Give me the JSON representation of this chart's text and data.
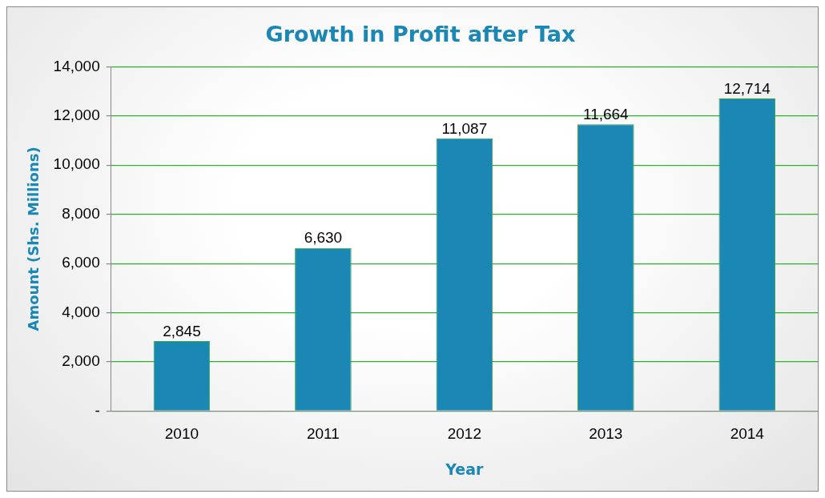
{
  "chart_data": {
    "type": "bar",
    "title": "Growth in Profit after Tax",
    "xlabel": "Year",
    "ylabel": "Amount (Shs. Millions)",
    "categories": [
      "2010",
      "2011",
      "2012",
      "2013",
      "2014"
    ],
    "values": [
      2845,
      6630,
      11087,
      11664,
      12714
    ],
    "value_labels": [
      "2,845",
      "6,630",
      "11,087",
      "11,664",
      "12,714"
    ],
    "color": "#1a87b5",
    "ylim": [
      0,
      14000
    ],
    "yticks": [
      {
        "value": 0,
        "label": "-"
      },
      {
        "value": 2000,
        "label": "2,000"
      },
      {
        "value": 4000,
        "label": "4,000"
      },
      {
        "value": 6000,
        "label": "6,000"
      },
      {
        "value": 8000,
        "label": "8,000"
      },
      {
        "value": 10000,
        "label": "10,000"
      },
      {
        "value": 12000,
        "label": "12,000"
      },
      {
        "value": 14000,
        "label": "14,000"
      }
    ],
    "grid": "y",
    "legend": false
  }
}
